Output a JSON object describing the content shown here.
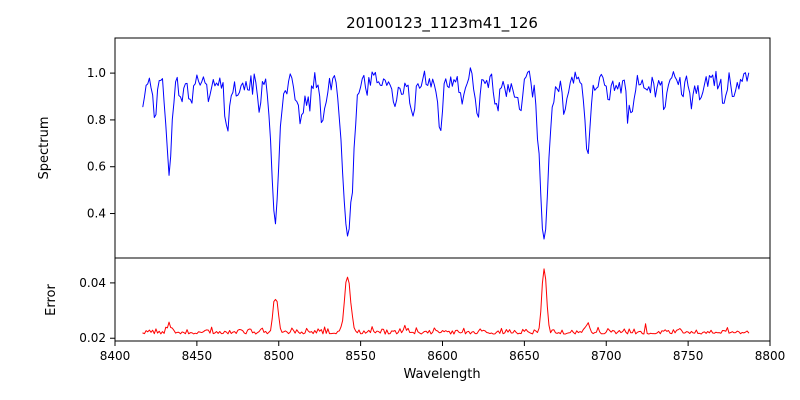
{
  "chart_data": {
    "type": "line",
    "title": "20100123_1123m41_126",
    "xlabel": "Wavelength",
    "xlim": [
      8400,
      8800
    ],
    "xticks": [
      8400,
      8450,
      8500,
      8550,
      8600,
      8650,
      8700,
      8750,
      8800
    ],
    "x_start": 8417,
    "x_end": 8787,
    "x_step": 1.0,
    "seed": 20100123,
    "grid": false,
    "legend": "none",
    "panels": [
      {
        "ylabel": "Spectrum",
        "color": "#0000ff",
        "ylim": [
          0.21,
          1.15
        ],
        "yticks": [
          0.4,
          0.6,
          0.8,
          1.0
        ],
        "ytick_labels": [
          "0.4",
          "0.6",
          "0.8",
          "1.0"
        ],
        "continuum": 0.97,
        "noise_std": 0.022,
        "flux_clip": 1.06,
        "micro_lines": {
          "count": 70,
          "max_depth": 0.07,
          "min_width": 0.7,
          "max_width": 1.6
        },
        "absorption_lines": [
          {
            "center": 8424.0,
            "depth": 0.1,
            "width": 1.2
          },
          {
            "center": 8433.0,
            "depth": 0.34,
            "width": 1.5
          },
          {
            "center": 8440.0,
            "depth": 0.12,
            "width": 1.2
          },
          {
            "center": 8446.0,
            "depth": 0.1,
            "width": 1.0
          },
          {
            "center": 8468.4,
            "depth": 0.17,
            "width": 1.3
          },
          {
            "center": 8498.0,
            "depth": 0.58,
            "width": 2.2
          },
          {
            "center": 8514.1,
            "depth": 0.16,
            "width": 1.2
          },
          {
            "center": 8526.0,
            "depth": 0.12,
            "width": 1.1
          },
          {
            "center": 8542.1,
            "depth": 0.66,
            "width": 3.0
          },
          {
            "center": 8582.0,
            "depth": 0.13,
            "width": 1.2
          },
          {
            "center": 8598.8,
            "depth": 0.15,
            "width": 1.2
          },
          {
            "center": 8611.0,
            "depth": 0.1,
            "width": 1.1
          },
          {
            "center": 8621.6,
            "depth": 0.13,
            "width": 1.2
          },
          {
            "center": 8648.0,
            "depth": 0.11,
            "width": 1.1
          },
          {
            "center": 8662.1,
            "depth": 0.67,
            "width": 2.6
          },
          {
            "center": 8674.7,
            "depth": 0.15,
            "width": 1.2
          },
          {
            "center": 8688.6,
            "depth": 0.3,
            "width": 1.6
          },
          {
            "center": 8713.0,
            "depth": 0.11,
            "width": 1.2
          },
          {
            "center": 8736.0,
            "depth": 0.12,
            "width": 1.2
          },
          {
            "center": 8752.0,
            "depth": 0.1,
            "width": 1.1
          },
          {
            "center": 8772.0,
            "depth": 0.1,
            "width": 1.1
          }
        ]
      },
      {
        "ylabel": "Error",
        "color": "#ff0000",
        "ylim": [
          0.019,
          0.049
        ],
        "yticks": [
          0.02,
          0.04
        ],
        "ytick_labels": [
          "0.02",
          "0.04"
        ],
        "baseline": 0.0215,
        "noise_std": 0.001,
        "error_clip": 0.0485,
        "spikes": [
          {
            "center": 8433.0,
            "height": 0.003,
            "width": 1.3
          },
          {
            "center": 8498.0,
            "height": 0.0125,
            "width": 1.4
          },
          {
            "center": 8542.1,
            "height": 0.0195,
            "width": 1.8
          },
          {
            "center": 8662.1,
            "height": 0.0235,
            "width": 1.4
          },
          {
            "center": 8688.6,
            "height": 0.0035,
            "width": 1.3
          }
        ]
      }
    ]
  }
}
